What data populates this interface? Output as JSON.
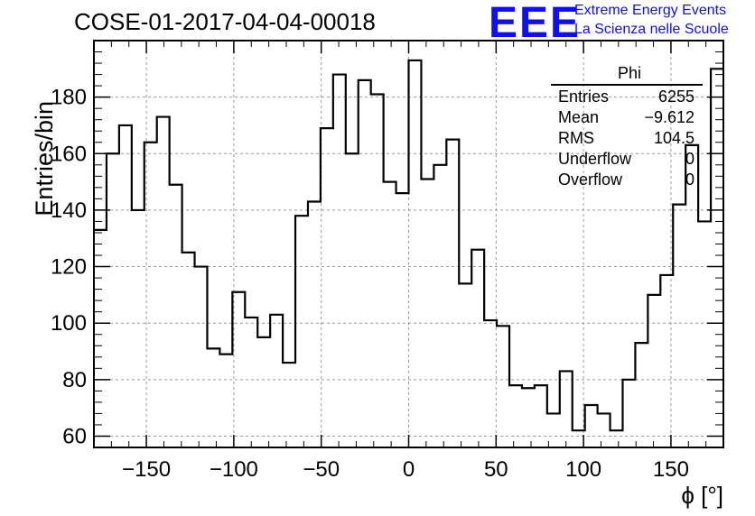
{
  "title": "COSE-01-2017-04-04-00018",
  "logo": {
    "letters": "EEE",
    "line1": "Extreme Energy Events",
    "line2": "La Scienza nelle Scuole"
  },
  "stats": {
    "name": "Phi",
    "rows": [
      {
        "label": "Entries",
        "value": "6255"
      },
      {
        "label": "Mean",
        "value": "−9.612"
      },
      {
        "label": "RMS",
        "value": "104.5"
      },
      {
        "label": "Underflow",
        "value": "0"
      },
      {
        "label": "Overflow",
        "value": "0"
      }
    ]
  },
  "chart_data": {
    "type": "bar",
    "style": "step histogram",
    "xlabel": "ϕ [°]",
    "ylabel": "Entries/bin",
    "xlim": [
      -180,
      180
    ],
    "ylim": [
      56,
      200
    ],
    "grid": true,
    "bin_width": 7.2,
    "xticks": [
      -150,
      -100,
      -50,
      0,
      50,
      100,
      150
    ],
    "xtick_labels": [
      "−150",
      "−100",
      "−50",
      "0",
      "50",
      "100",
      "150"
    ],
    "yticks": [
      60,
      80,
      100,
      120,
      140,
      160,
      180
    ],
    "ytick_labels": [
      "60",
      "80",
      "100",
      "120",
      "140",
      "160",
      "180"
    ],
    "values": [
      133,
      160,
      170,
      140,
      164,
      173,
      149,
      125,
      120,
      91,
      89,
      111,
      102,
      95,
      103,
      86,
      138,
      143,
      169,
      188,
      160,
      186,
      181,
      150,
      146,
      193,
      151,
      156,
      165,
      114,
      126,
      101,
      99,
      78,
      77,
      78,
      68,
      83,
      62,
      71,
      68,
      62,
      80,
      93,
      110,
      117,
      142,
      163,
      136,
      190
    ],
    "line_color": "#000000"
  }
}
